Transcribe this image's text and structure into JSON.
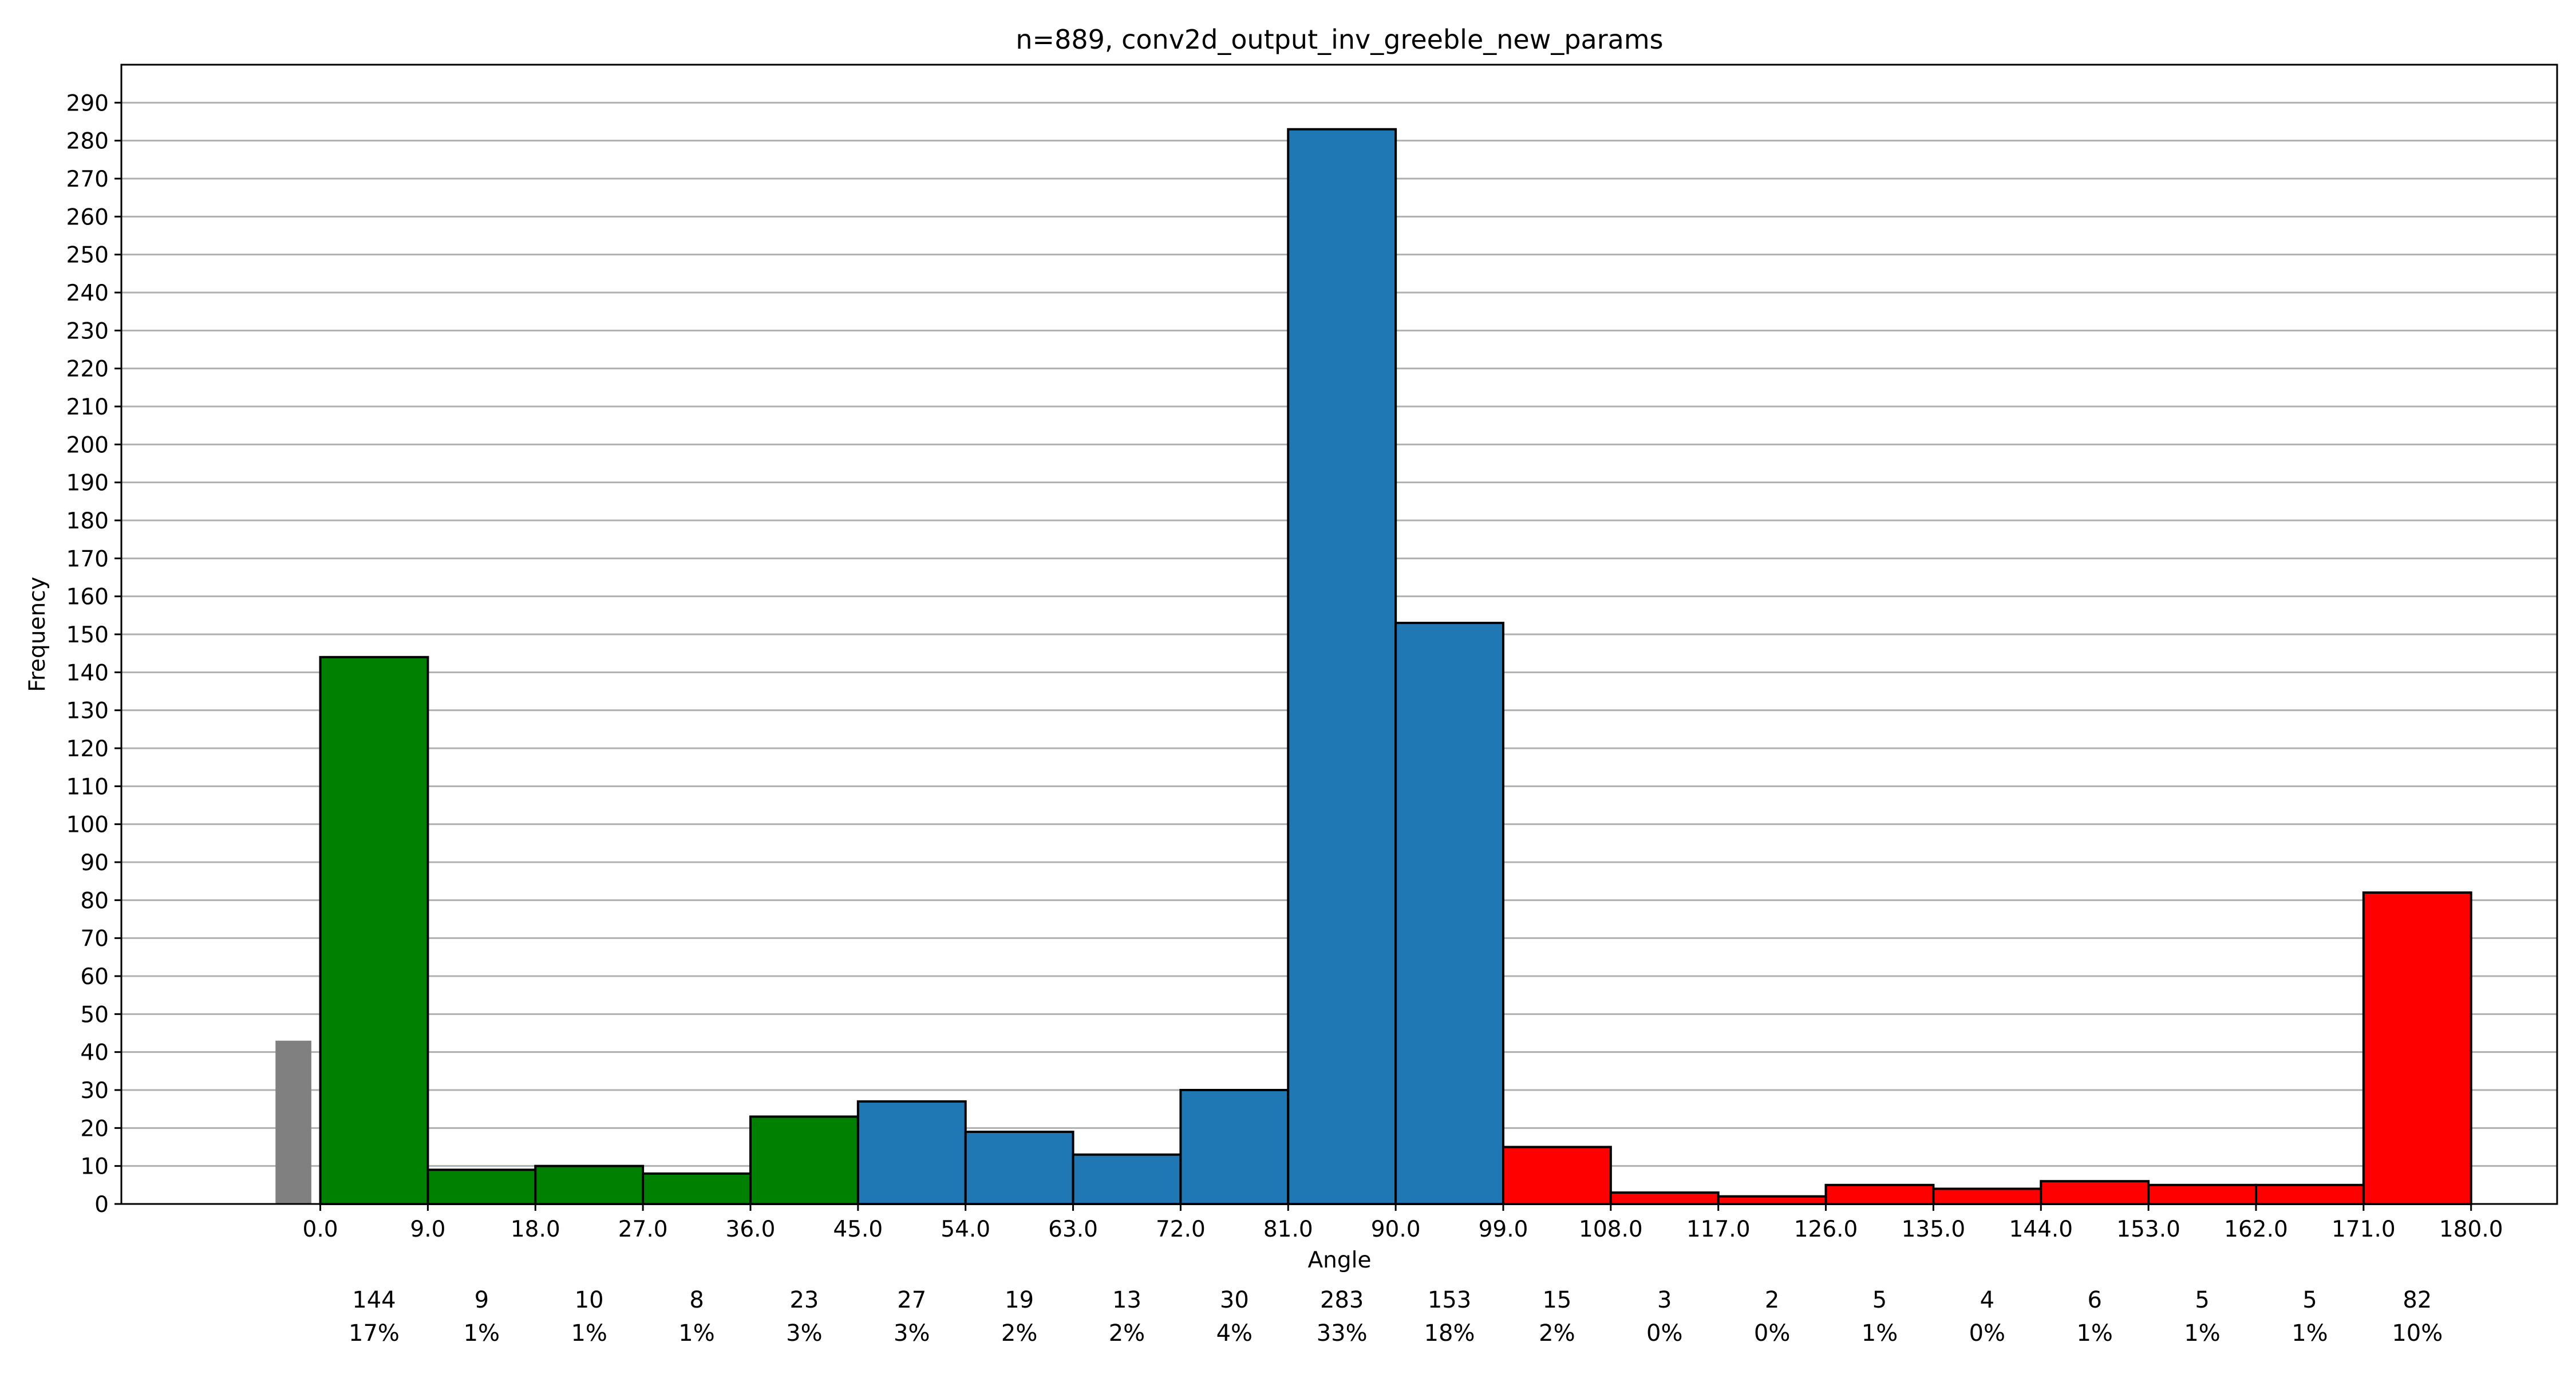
{
  "chart_data": {
    "type": "bar",
    "title": "n=889, conv2d_output_inv_greeble_new_params",
    "xlabel": "Angle",
    "ylabel": "Frequency",
    "ylim": [
      0,
      300
    ],
    "xlim": [
      -16.65,
      187.2
    ],
    "grid": "horizontal",
    "yticks": [
      0,
      10,
      20,
      30,
      40,
      50,
      60,
      70,
      80,
      90,
      100,
      110,
      120,
      130,
      140,
      150,
      160,
      170,
      180,
      190,
      200,
      210,
      220,
      230,
      240,
      250,
      260,
      270,
      280,
      290
    ],
    "xticks": [
      "0.0",
      "9.0",
      "18.0",
      "27.0",
      "36.0",
      "45.0",
      "54.0",
      "63.0",
      "72.0",
      "81.0",
      "90.0",
      "99.0",
      "108.0",
      "117.0",
      "126.0",
      "135.0",
      "144.0",
      "153.0",
      "162.0",
      "171.0",
      "180.0"
    ],
    "extra_bar": {
      "x_start": -3.75,
      "x_end": -0.75,
      "value": 43,
      "color": "#808080"
    },
    "bins": [
      {
        "start": 0,
        "end": 9,
        "value": 144,
        "color": "#008000"
      },
      {
        "start": 9,
        "end": 18,
        "value": 9,
        "color": "#008000"
      },
      {
        "start": 18,
        "end": 27,
        "value": 10,
        "color": "#008000"
      },
      {
        "start": 27,
        "end": 36,
        "value": 8,
        "color": "#008000"
      },
      {
        "start": 36,
        "end": 45,
        "value": 23,
        "color": "#008000"
      },
      {
        "start": 45,
        "end": 54,
        "value": 27,
        "color": "#1f77b4"
      },
      {
        "start": 54,
        "end": 63,
        "value": 19,
        "color": "#1f77b4"
      },
      {
        "start": 63,
        "end": 72,
        "value": 13,
        "color": "#1f77b4"
      },
      {
        "start": 72,
        "end": 81,
        "value": 30,
        "color": "#1f77b4"
      },
      {
        "start": 81,
        "end": 90,
        "value": 283,
        "color": "#1f77b4"
      },
      {
        "start": 90,
        "end": 99,
        "value": 153,
        "color": "#1f77b4"
      },
      {
        "start": 99,
        "end": 108,
        "value": 15,
        "color": "#ff0000"
      },
      {
        "start": 108,
        "end": 117,
        "value": 3,
        "color": "#ff0000"
      },
      {
        "start": 117,
        "end": 126,
        "value": 2,
        "color": "#ff0000"
      },
      {
        "start": 126,
        "end": 135,
        "value": 5,
        "color": "#ff0000"
      },
      {
        "start": 135,
        "end": 144,
        "value": 4,
        "color": "#ff0000"
      },
      {
        "start": 144,
        "end": 153,
        "value": 6,
        "color": "#ff0000"
      },
      {
        "start": 153,
        "end": 162,
        "value": 5,
        "color": "#ff0000"
      },
      {
        "start": 162,
        "end": 171,
        "value": 5,
        "color": "#ff0000"
      },
      {
        "start": 171,
        "end": 180,
        "value": 82,
        "color": "#ff0000"
      }
    ],
    "counts": [
      "144",
      "9",
      "10",
      "8",
      "23",
      "27",
      "19",
      "13",
      "30",
      "283",
      "153",
      "15",
      "3",
      "2",
      "5",
      "4",
      "6",
      "5",
      "5",
      "82"
    ],
    "percents": [
      "17%",
      "1%",
      "1%",
      "1%",
      "3%",
      "3%",
      "2%",
      "2%",
      "4%",
      "33%",
      "18%",
      "2%",
      "0%",
      "0%",
      "1%",
      "0%",
      "1%",
      "1%",
      "1%",
      "10%"
    ]
  }
}
